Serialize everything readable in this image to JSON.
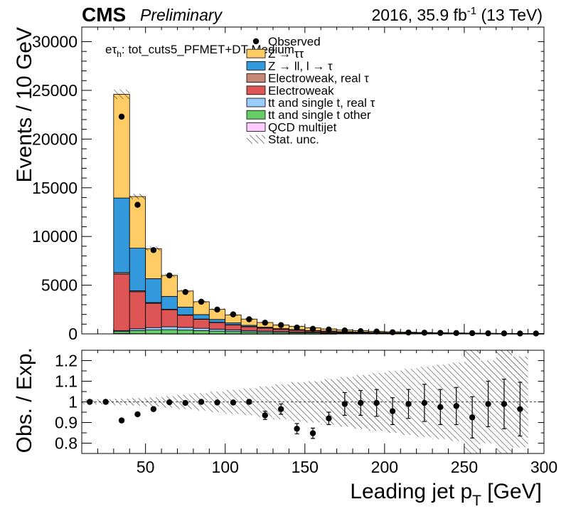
{
  "header": {
    "cms": "CMS",
    "preliminary": "Preliminary",
    "lumi_prefix": "2016, 35.9 fb",
    "lumi_sup": "-1",
    "lumi_suffix": " (13 TeV)"
  },
  "category": {
    "prefix": "e",
    "tau": "τ",
    "sub": "h",
    "text": ": tot_cuts5_PFMET+DT Medium"
  },
  "legend": [
    {
      "label": "Observed",
      "kind": "marker"
    },
    {
      "label": "Z → ττ",
      "kind": "box",
      "color": "#ffcc66"
    },
    {
      "label": "Z → ll, l → τ",
      "kind": "box",
      "color": "#3399dd"
    },
    {
      "label": "Electroweak, real  τ",
      "kind": "box",
      "color": "#c88878"
    },
    {
      "label": "Electroweak",
      "kind": "box",
      "color": "#dd5555"
    },
    {
      "label": "tt and single t, real  τ",
      "kind": "box",
      "color": "#99ccff"
    },
    {
      "label": "tt and single t other",
      "kind": "box",
      "color": "#66cc66"
    },
    {
      "label": "QCD multijet",
      "kind": "box",
      "color": "#ffccff"
    },
    {
      "label": "Stat. unc.",
      "kind": "hatch"
    }
  ],
  "axes": {
    "top_ylabel": "Events / 10 GeV",
    "bottom_ylabel": "Obs. / Exp.",
    "xlabel": "Leading jet p",
    "xlabel_sub": "T",
    "xlabel_unit": " [GeV]",
    "x_ticks": [
      "50",
      "100",
      "150",
      "200",
      "250",
      "300"
    ],
    "top_y_ticks": [
      "0",
      "5000",
      "10000",
      "15000",
      "20000",
      "25000",
      "30000"
    ],
    "ratio_y_ticks": [
      "0.8",
      "0.9",
      "1",
      "1.1",
      "1.2"
    ]
  },
  "chart_data": {
    "type": "bar",
    "stacked": true,
    "xlim": [
      10,
      300
    ],
    "ylim": [
      0,
      31500
    ],
    "ratio_ylim": [
      0.75,
      1.25
    ],
    "bin_edges": [
      30,
      40,
      50,
      60,
      70,
      80,
      90,
      100,
      110,
      120,
      130,
      140,
      150,
      160,
      170,
      180,
      190,
      200,
      210,
      220,
      230,
      240,
      250,
      260,
      270,
      280,
      290,
      300
    ],
    "series": [
      {
        "name": "QCD multijet",
        "color": "#ffccff",
        "values": [
          40,
          25,
          15,
          10,
          8,
          5,
          4,
          3,
          2,
          2,
          1,
          1,
          1,
          1,
          0,
          0,
          0,
          0,
          0,
          0,
          0,
          0,
          0,
          0,
          0,
          0,
          0
        ]
      },
      {
        "name": "tt and single t other",
        "color": "#66cc66",
        "values": [
          200,
          320,
          380,
          420,
          380,
          330,
          280,
          240,
          200,
          170,
          140,
          120,
          100,
          85,
          70,
          60,
          50,
          42,
          36,
          30,
          25,
          21,
          18,
          15,
          12,
          10,
          9
        ]
      },
      {
        "name": "tt and single t, real  τ",
        "color": "#99ccff",
        "values": [
          100,
          180,
          250,
          300,
          280,
          240,
          200,
          170,
          140,
          120,
          100,
          85,
          72,
          60,
          50,
          42,
          35,
          30,
          25,
          21,
          17,
          14,
          12,
          10,
          8,
          7,
          6
        ]
      },
      {
        "name": "Electroweak",
        "color": "#dd5555",
        "values": [
          5800,
          3800,
          2500,
          1750,
          1250,
          920,
          680,
          520,
          400,
          310,
          240,
          190,
          150,
          120,
          95,
          76,
          62,
          50,
          41,
          33,
          27,
          22,
          18,
          15,
          12,
          10,
          8
        ]
      },
      {
        "name": "Electroweak, real  τ",
        "color": "#c88878",
        "values": [
          150,
          100,
          70,
          50,
          38,
          28,
          22,
          17,
          13,
          10,
          8,
          6,
          5,
          4,
          3,
          3,
          2,
          2,
          2,
          1,
          1,
          1,
          1,
          1,
          1,
          1,
          1
        ]
      },
      {
        "name": "Z → ll, l → τ",
        "color": "#3399dd",
        "values": [
          7660,
          4375,
          2455,
          1320,
          794,
          457,
          297,
          180,
          125,
          77,
          51,
          38,
          22,
          20,
          12,
          9,
          6,
          6,
          4,
          5,
          3,
          2,
          1,
          1,
          1,
          0,
          0
        ]
      },
      {
        "name": "Z → ττ",
        "color": "#ffcc66",
        "values": [
          10650,
          5300,
          3080,
          2150,
          1650,
          1320,
          1027,
          820,
          640,
          480,
          380,
          340,
          280,
          220,
          185,
          145,
          115,
          92,
          72,
          58,
          47,
          40,
          30,
          24,
          20,
          17,
          14
        ]
      }
    ],
    "observed": {
      "x": [
        15,
        25,
        35,
        45,
        55,
        65,
        75,
        85,
        95,
        105,
        115,
        125,
        135,
        145,
        155,
        165,
        175,
        185,
        195,
        205,
        215,
        225,
        235,
        245,
        255,
        265,
        275,
        285,
        295
      ],
      "values": [
        null,
        null,
        22300,
        13250,
        8600,
        6000,
        4300,
        3300,
        2500,
        2000,
        1500,
        1150,
        900,
        650,
        520,
        450,
        350,
        280,
        240,
        170,
        140,
        120,
        100,
        85,
        75,
        60,
        50,
        40,
        40
      ]
    },
    "ratio": {
      "x": [
        15,
        25,
        35,
        45,
        55,
        65,
        75,
        85,
        95,
        105,
        115,
        125,
        135,
        145,
        155,
        165,
        175,
        185,
        195,
        205,
        215,
        225,
        235,
        245,
        255,
        265,
        275,
        285
      ],
      "values": [
        1.0,
        1.0,
        0.91,
        0.94,
        0.965,
        0.998,
        0.995,
        1.0,
        0.997,
        0.997,
        1.0,
        0.935,
        0.965,
        0.87,
        0.848,
        0.92,
        0.99,
        0.995,
        0.995,
        0.955,
        0.99,
        0.995,
        0.975,
        0.98,
        0.925,
        0.99,
        0.99,
        0.965
      ],
      "errors": [
        0,
        0,
        0,
        0,
        0,
        0,
        0,
        0,
        0,
        0,
        0.01,
        0.02,
        0.025,
        0.025,
        0.025,
        0.03,
        0.055,
        0.06,
        0.065,
        0.065,
        0.07,
        0.09,
        0.085,
        0.09,
        0.1,
        0.11,
        0.12,
        0.13
      ],
      "unc": [
        0.012,
        0.012,
        0.015,
        0.018,
        0.022,
        0.028,
        0.035,
        0.042,
        0.05,
        0.058,
        0.065,
        0.075,
        0.085,
        0.095,
        0.1,
        0.11,
        0.12,
        0.13,
        0.14,
        0.15,
        0.16,
        0.17,
        0.18,
        0.19,
        0.25,
        0.2,
        0.25,
        0.22
      ]
    },
    "stat_unc_top": [
      0.02,
      0.02,
      0.025,
      0.03,
      0.035,
      0.04,
      0.045,
      0.05,
      0.055,
      0.06,
      0.065,
      0.07,
      0.075,
      0.08,
      0.085,
      0.09,
      0.1,
      0.1,
      0.11,
      0.12,
      0.13,
      0.14,
      0.15,
      0.16,
      0.17,
      0.18,
      0.2
    ],
    "legend_position": "top-center",
    "grid": false
  }
}
